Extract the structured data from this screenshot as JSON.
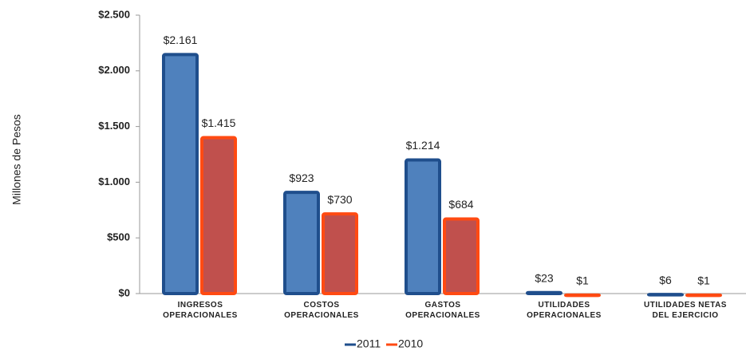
{
  "chart_data": {
    "type": "bar",
    "y_label": "Millones de Pesos",
    "categories": [
      "INGRESOS OPERACIONALES",
      "COSTOS OPERACIONALES",
      "GASTOS OPERACIONALES",
      "UTILIDADES OPERACIONALES",
      "UTILIDADES NETAS DEL EJERCICIO"
    ],
    "series": [
      {
        "name": "2011",
        "color": "#1f4e8c",
        "fill": "#4f81bd",
        "values": [
          2161,
          923,
          1214,
          23,
          6
        ],
        "value_labels": [
          "$2.161",
          "$923",
          "$1.214",
          "$23",
          "$6"
        ]
      },
      {
        "name": "2010",
        "color": "#ff4a12",
        "fill": "#c0504d",
        "values": [
          1415,
          730,
          684,
          1,
          1
        ],
        "value_labels": [
          "$1.415",
          "$730",
          "$684",
          "$1",
          "$1"
        ]
      }
    ],
    "ylim": [
      0,
      2500
    ],
    "yticks": [
      {
        "value": 0,
        "label": "$0"
      },
      {
        "value": 500,
        "label": "$500"
      },
      {
        "value": 1000,
        "label": "$1.000"
      },
      {
        "value": 1500,
        "label": "$1.500"
      },
      {
        "value": 2000,
        "label": "$2.000"
      },
      {
        "value": 2500,
        "label": "$2.500"
      }
    ],
    "legend": "bottom"
  }
}
